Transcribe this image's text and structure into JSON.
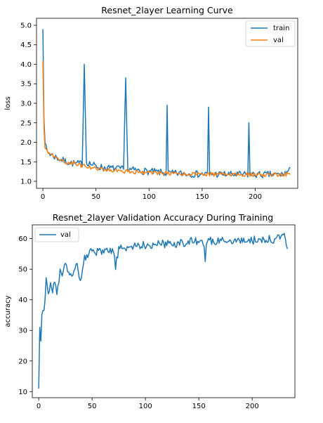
{
  "chart_data": [
    {
      "type": "line",
      "title": "Resnet_2layer Learning Curve",
      "xlabel": "",
      "ylabel": "loss",
      "xlim": [
        -6,
        240
      ],
      "ylim": [
        0.82,
        5.18
      ],
      "xticks": [
        0,
        50,
        100,
        150,
        200
      ],
      "yticks": [
        1.0,
        1.5,
        2.0,
        2.5,
        3.0,
        3.5,
        4.0,
        4.5,
        5.0
      ],
      "ytick_labels": [
        "1.0",
        "1.5",
        "2.0",
        "2.5",
        "3.0",
        "3.5",
        "4.0",
        "4.5",
        "5.0"
      ],
      "grid": false,
      "legend_position": "top-right",
      "n_points": 234,
      "series": [
        {
          "name": "train",
          "color": "#1f77b4",
          "anchors": [
            [
              0,
              4.9
            ],
            [
              1,
              2.6
            ],
            [
              2,
              2.0
            ],
            [
              4,
              1.78
            ],
            [
              6,
              1.72
            ],
            [
              10,
              1.65
            ],
            [
              15,
              1.58
            ],
            [
              20,
              1.52
            ],
            [
              30,
              1.45
            ],
            [
              37,
              1.45
            ],
            [
              39,
              4.0
            ],
            [
              41,
              1.5
            ],
            [
              50,
              1.38
            ],
            [
              60,
              1.34
            ],
            [
              70,
              1.32
            ],
            [
              76,
              1.3
            ],
            [
              78,
              3.65
            ],
            [
              80,
              1.3
            ],
            [
              90,
              1.27
            ],
            [
              100,
              1.25
            ],
            [
              110,
              1.23
            ],
            [
              116,
              1.2
            ],
            [
              117,
              2.95
            ],
            [
              118,
              1.2
            ],
            [
              130,
              1.2
            ],
            [
              140,
              1.19
            ],
            [
              150,
              1.18
            ],
            [
              155,
              1.18
            ],
            [
              156,
              2.9
            ],
            [
              157,
              1.18
            ],
            [
              170,
              1.18
            ],
            [
              180,
              1.17
            ],
            [
              193,
              1.17
            ],
            [
              194,
              2.5
            ],
            [
              195,
              1.17
            ],
            [
              210,
              1.17
            ],
            [
              225,
              1.17
            ],
            [
              233,
              1.28
            ]
          ],
          "noise": 0.09,
          "seed": 7
        },
        {
          "name": "val",
          "color": "#ff7f0e",
          "anchors": [
            [
              0,
              4.08
            ],
            [
              1,
              2.4
            ],
            [
              2,
              1.85
            ],
            [
              4,
              1.75
            ],
            [
              8,
              1.68
            ],
            [
              15,
              1.58
            ],
            [
              20,
              1.5
            ],
            [
              30,
              1.45
            ],
            [
              40,
              1.38
            ],
            [
              50,
              1.33
            ],
            [
              60,
              1.3
            ],
            [
              70,
              1.28
            ],
            [
              80,
              1.25
            ],
            [
              90,
              1.23
            ],
            [
              100,
              1.22
            ],
            [
              120,
              1.2
            ],
            [
              140,
              1.19
            ],
            [
              160,
              1.18
            ],
            [
              180,
              1.17
            ],
            [
              200,
              1.17
            ],
            [
              220,
              1.17
            ],
            [
              233,
              1.18
            ]
          ],
          "noise": 0.05,
          "seed": 19
        }
      ]
    },
    {
      "type": "line",
      "title": "Resnet_2layer Validation Accuracy During Training",
      "xlabel": "",
      "ylabel": "accuracy",
      "xlim": [
        -6,
        240
      ],
      "ylim": [
        8.0,
        64.5
      ],
      "xticks": [
        0,
        50,
        100,
        150,
        200
      ],
      "yticks": [
        10,
        20,
        30,
        40,
        50,
        60
      ],
      "ytick_labels": [
        "10",
        "20",
        "30",
        "40",
        "50",
        "60"
      ],
      "grid": false,
      "legend_position": "top-left",
      "n_points": 234,
      "series": [
        {
          "name": "val",
          "color": "#1f77b4",
          "anchors": [
            [
              0,
              11
            ],
            [
              1,
              31
            ],
            [
              2,
              26.5
            ],
            [
              3,
              36.5
            ],
            [
              5,
              37
            ],
            [
              7,
              46
            ],
            [
              9,
              41.5
            ],
            [
              11,
              45
            ],
            [
              13,
              42.5
            ],
            [
              15,
              47
            ],
            [
              17,
              41
            ],
            [
              20,
              49
            ],
            [
              22,
              47
            ],
            [
              25,
              51.5
            ],
            [
              28,
              50
            ],
            [
              30,
              48
            ],
            [
              33,
              49
            ],
            [
              36,
              51
            ],
            [
              38,
              46
            ],
            [
              40,
              47.5
            ],
            [
              42,
              53
            ],
            [
              45,
              55
            ],
            [
              50,
              55.5
            ],
            [
              60,
              55.5
            ],
            [
              70,
              56
            ],
            [
              72,
              51
            ],
            [
              75,
              56.5
            ],
            [
              80,
              57
            ],
            [
              90,
              57.5
            ],
            [
              100,
              58
            ],
            [
              110,
              58
            ],
            [
              120,
              58.5
            ],
            [
              130,
              58.5
            ],
            [
              140,
              59
            ],
            [
              150,
              59
            ],
            [
              155,
              58.5
            ],
            [
              156,
              52.5
            ],
            [
              157,
              59
            ],
            [
              170,
              59.5
            ],
            [
              190,
              59.5
            ],
            [
              210,
              59.5
            ],
            [
              225,
              60
            ],
            [
              230,
              61
            ],
            [
              233,
              58
            ]
          ],
          "noise": 1.4,
          "seed": 31
        }
      ]
    }
  ]
}
